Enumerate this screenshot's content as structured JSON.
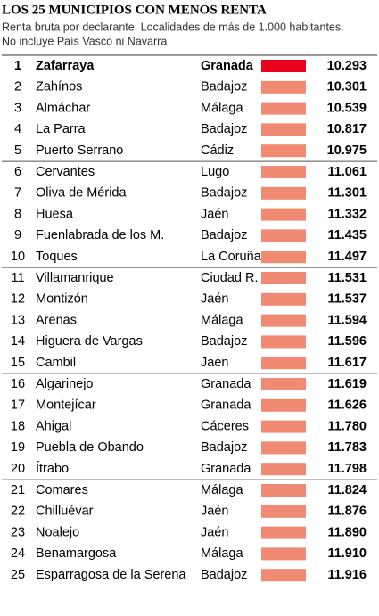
{
  "header": {
    "title": "LOS 25 MUNICIPIOS CON MENOS RENTA",
    "subtitle": "Renta bruta por declarante. Localidades de más de 1.000 habitantes.",
    "note": "No incluye País Vasco ni Navarra"
  },
  "table": {
    "rows": [
      [
        "1",
        "Zafarraya",
        "Granada",
        "10.293"
      ],
      [
        "2",
        "Zahínos",
        "Badajoz",
        "10.301"
      ],
      [
        "3",
        "Almáchar",
        "Málaga",
        "10.539"
      ],
      [
        "4",
        "La Parra",
        "Badajoz",
        "10.817"
      ],
      [
        "5",
        "Puerto Serrano",
        "Cádiz",
        "10.975"
      ],
      [
        "6",
        "Cervantes",
        "Lugo",
        "11.061"
      ],
      [
        "7",
        "Oliva de Mérida",
        "Badajoz",
        "11.301"
      ],
      [
        "8",
        "Huesa",
        "Jaén",
        "11.332"
      ],
      [
        "9",
        "Fuenlabrada de los M.",
        "Badajoz",
        "11.435"
      ],
      [
        "10",
        "Toques",
        "La Coruña",
        "11.497"
      ],
      [
        "11",
        "Villamanrique",
        "Ciudad R.",
        "11.531"
      ],
      [
        "12",
        "Montizón",
        "Jaén",
        "11.537"
      ],
      [
        "13",
        "Arenas",
        "Málaga",
        "11.594"
      ],
      [
        "14",
        "Higuera de Vargas",
        "Badajoz",
        "11.596"
      ],
      [
        "15",
        "Cambil",
        "Jaén",
        "11.617"
      ],
      [
        "16",
        "Algarinejo",
        "Granada",
        "11.619"
      ],
      [
        "17",
        "Montejícar",
        "Granada",
        "11.626"
      ],
      [
        "18",
        "Ahigal",
        "Cáceres",
        "11.780"
      ],
      [
        "19",
        "Puebla de Obando",
        "Badajoz",
        "11.783"
      ],
      [
        "20",
        "Ítrabo",
        "Granada",
        "11.798"
      ],
      [
        "21",
        "Comares",
        "Málaga",
        "11.824"
      ],
      [
        "22",
        "Chilluévar",
        "Jaén",
        "11.876"
      ],
      [
        "23",
        "Noalejo",
        "Jaén",
        "11.890"
      ],
      [
        "24",
        "Benamargosa",
        "Málaga",
        "11.910"
      ],
      [
        "25",
        "Esparragosa de la Serena",
        "Badajoz",
        "11.916"
      ]
    ]
  }
}
